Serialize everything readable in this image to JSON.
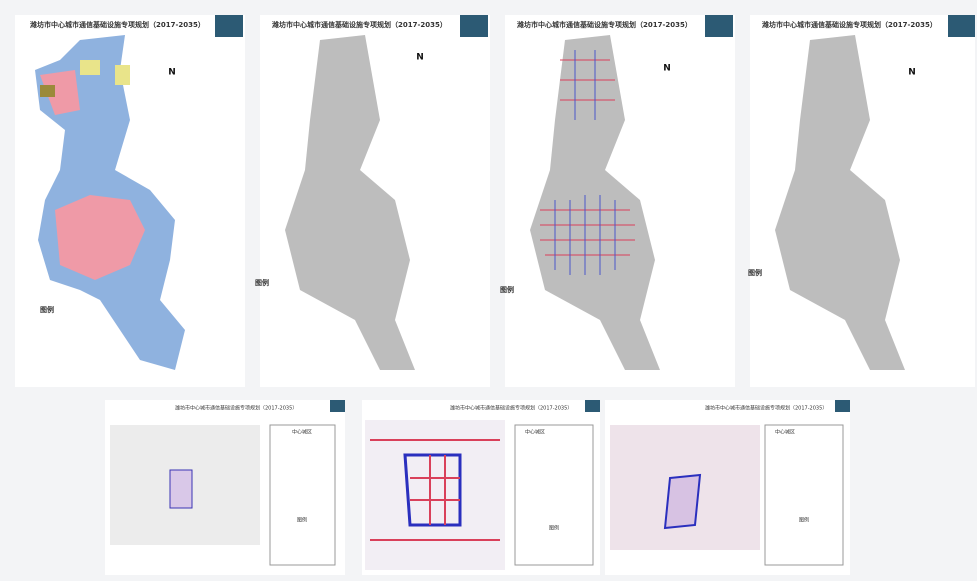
{
  "panels": [
    {
      "title": "潍坊市中心城市通信基础设施专项规划（2017-2035）",
      "north": "N",
      "legend": "图例"
    },
    {
      "title": "潍坊市中心城市通信基础设施专项规划（2017-2035）",
      "north": "N",
      "legend": "图例"
    },
    {
      "title": "潍坊市中心城市通信基础设施专项规划（2017-2035）",
      "north": "N",
      "legend": "图例"
    },
    {
      "title": "潍坊市中心城市通信基础设施专项规划（2017-2035）",
      "north": "N",
      "legend": "图例"
    },
    {
      "title": "潍坊市中心城市通信基础设施专项规划（2017-2035）",
      "sheet": "中心城区",
      "legend": "图例"
    },
    {
      "title": "潍坊市中心城市通信基础设施专项规划（2017-2035）",
      "sheet": "中心城区",
      "legend": "图例"
    },
    {
      "title": "潍坊市中心城市通信基础设施专项规划（2017-2035）",
      "sheet": "中心城区",
      "legend": "图例"
    }
  ]
}
